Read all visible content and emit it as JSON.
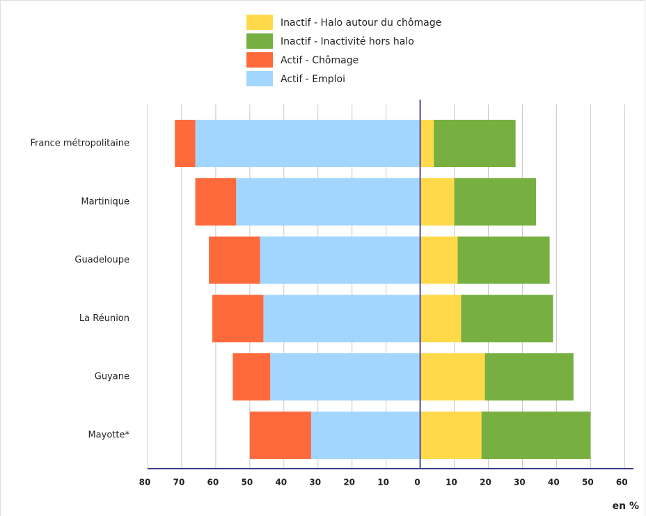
{
  "chart_data": {
    "type": "diverging-bar",
    "categories": [
      "France métropolitaine",
      "Martinique",
      "Guadeloupe",
      "La Réunion",
      "Guyane",
      "Mayotte*"
    ],
    "series": [
      {
        "name": "Inactif - Halo autour du chômage",
        "color": "#ffd94a",
        "values": [
          4,
          10,
          11,
          12,
          19,
          18
        ]
      },
      {
        "name": "Inactif - Inactivité hors halo",
        "color": "#77b041",
        "values": [
          24,
          24,
          27,
          27,
          26,
          32
        ]
      },
      {
        "name": "Actif - Chômage",
        "color": "#ff6a3d",
        "values": [
          -6,
          -12,
          -15,
          -15,
          -11,
          -18
        ]
      },
      {
        "name": "Actif - Emploi",
        "color": "#a3d6ff",
        "values": [
          -66,
          -54,
          -47,
          -46,
          -44,
          -32
        ]
      }
    ],
    "xlim": [
      -80,
      62.6
    ],
    "xticks": [
      {
        "value": -80,
        "label": "80"
      },
      {
        "value": -70,
        "label": "70"
      },
      {
        "value": -60,
        "label": "60"
      },
      {
        "value": -50,
        "label": "50"
      },
      {
        "value": -40,
        "label": "40"
      },
      {
        "value": -30,
        "label": "30"
      },
      {
        "value": -20,
        "label": "20"
      },
      {
        "value": -10,
        "label": "10"
      },
      0,
      10,
      20,
      30,
      40,
      50,
      60
    ],
    "xlabel": "en %",
    "grid": true,
    "legend": "top"
  }
}
